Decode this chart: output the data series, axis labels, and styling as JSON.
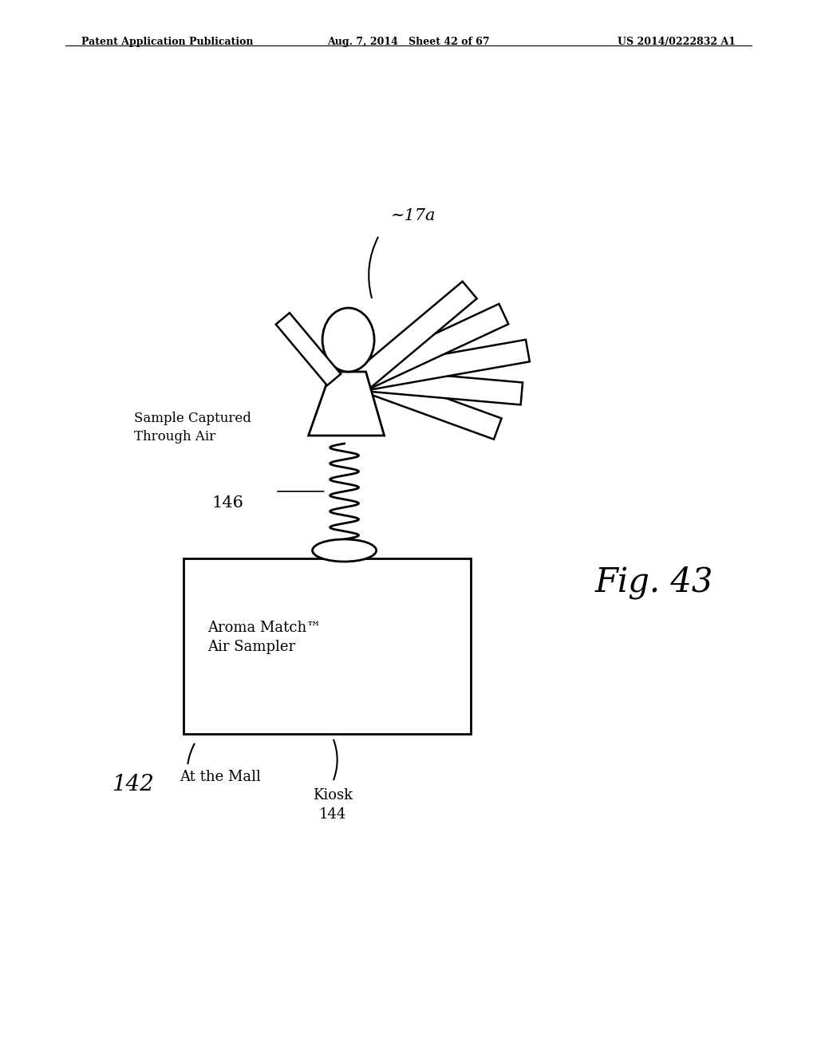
{
  "background_color": "#ffffff",
  "header_left": "Patent Application Publication",
  "header_center": "Aug. 7, 2014   Sheet 42 of 67",
  "header_right": "US 2014/0222832 A1",
  "fig_label": "Fig. 43",
  "label_142": "142",
  "label_142_text": "At the Mall",
  "label_144_line1": "Kiosk",
  "label_144_line2": "144",
  "label_146": "146",
  "label_17a": "~17a",
  "label_sample": "Sample Captured\nThrough Air",
  "box_text_line1": "Aroma Match™",
  "box_text_line2": "Air Sampler"
}
